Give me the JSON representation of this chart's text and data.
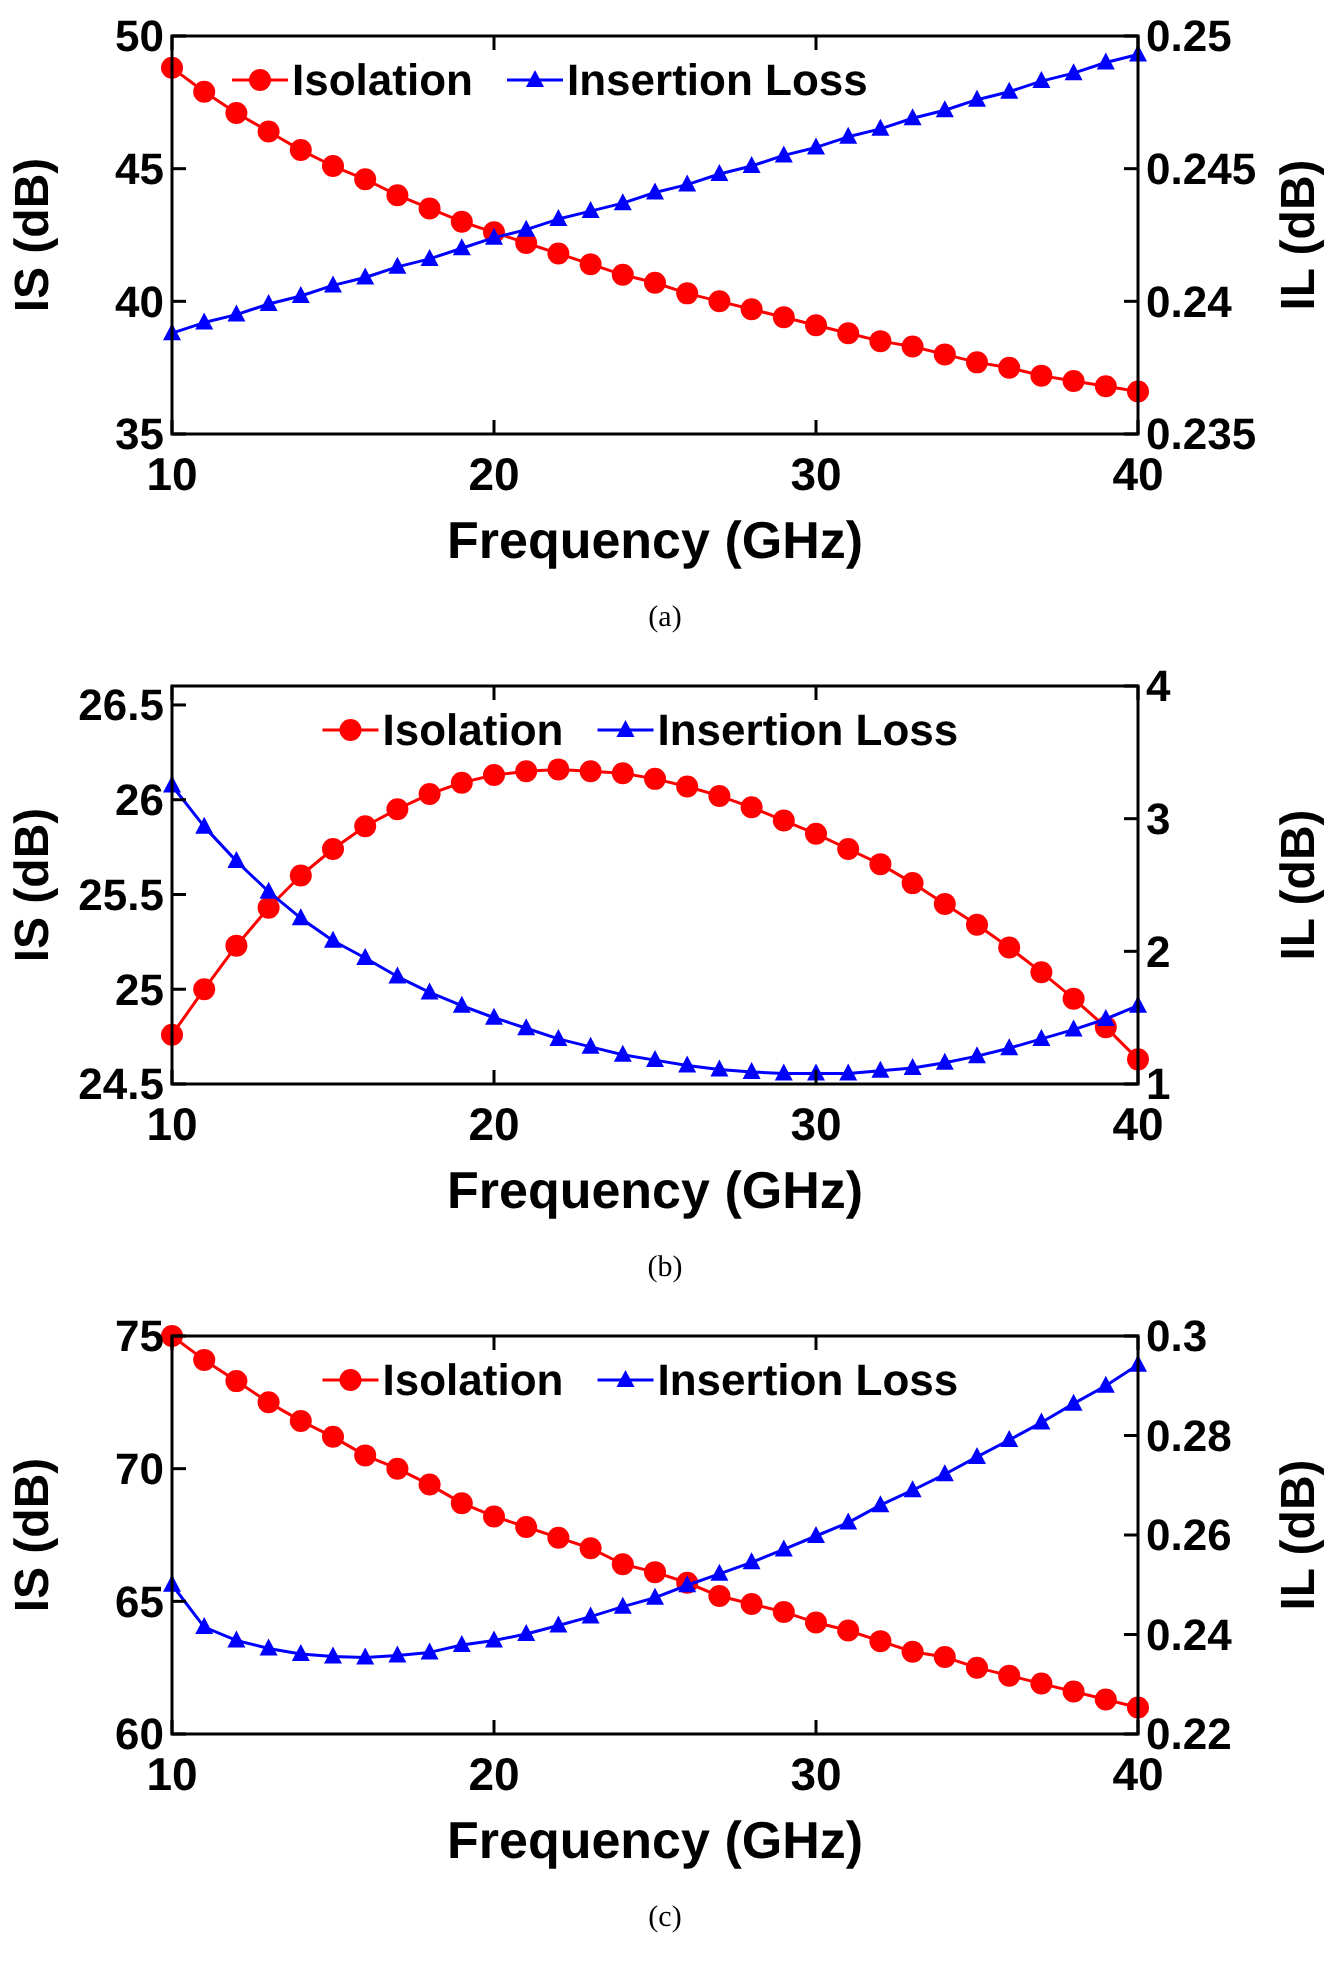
{
  "chart_data": [
    {
      "type": "line",
      "xlabel": "Frequency (GHz)",
      "ylabel": "IS (dB)",
      "y2label": "IL (dB)",
      "legend": "top left",
      "annotations": [
        "(a)"
      ],
      "x": [
        10,
        11,
        12,
        13,
        14,
        15,
        16,
        17,
        18,
        19,
        20,
        21,
        22,
        23,
        24,
        25,
        26,
        27,
        28,
        29,
        30,
        31,
        32,
        33,
        34,
        35,
        36,
        37,
        38,
        39,
        40
      ],
      "xlim": [
        10,
        40
      ],
      "xticks": [
        10,
        20,
        30,
        40
      ],
      "ylim": [
        35,
        50
      ],
      "yticks": [
        35,
        40,
        45,
        50
      ],
      "y2lim": [
        0.235,
        0.25
      ],
      "y2ticks": [
        0.235,
        0.24,
        0.245,
        0.25
      ],
      "series": [
        {
          "name": "Isolation",
          "color": "#ff0000",
          "marker": "circle",
          "values": [
            48.8,
            47.9,
            47.1,
            46.4,
            45.7,
            45.1,
            44.6,
            44.0,
            43.5,
            43.0,
            42.6,
            42.2,
            41.8,
            41.4,
            41.0,
            40.7,
            40.3,
            40.0,
            39.7,
            39.4,
            39.1,
            38.8,
            38.5,
            38.3,
            38.0,
            37.7,
            37.5,
            37.2,
            37.0,
            36.8,
            36.6
          ]
        },
        {
          "name": "Insertion Loss",
          "color": "#0000ff",
          "marker": "triangle",
          "axis": "y2",
          "values": [
            0.2388,
            0.2392,
            0.2395,
            0.2399,
            0.2402,
            0.2406,
            0.2409,
            0.2413,
            0.2416,
            0.242,
            0.2424,
            0.2427,
            0.2431,
            0.2434,
            0.2437,
            0.2441,
            0.2444,
            0.2448,
            0.2451,
            0.2455,
            0.2458,
            0.2462,
            0.2465,
            0.2469,
            0.2472,
            0.2476,
            0.2479,
            0.2483,
            0.2486,
            0.249,
            0.2493
          ]
        }
      ]
    },
    {
      "type": "line",
      "xlabel": "Frequency (GHz)",
      "ylabel": "IS (dB)",
      "y2label": "IL (dB)",
      "legend": "top",
      "annotations": [
        "(b)"
      ],
      "x": [
        10,
        11,
        12,
        13,
        14,
        15,
        16,
        17,
        18,
        19,
        20,
        21,
        22,
        23,
        24,
        25,
        26,
        27,
        28,
        29,
        30,
        31,
        32,
        33,
        34,
        35,
        36,
        37,
        38,
        39,
        40
      ],
      "xlim": [
        10,
        40
      ],
      "xticks": [
        10,
        20,
        30,
        40
      ],
      "ylim": [
        24.5,
        26.6
      ],
      "yticks": [
        24.5,
        25,
        25.5,
        26,
        26.5
      ],
      "y2lim": [
        1,
        4
      ],
      "y2ticks": [
        1,
        2,
        3,
        4
      ],
      "series": [
        {
          "name": "Isolation",
          "color": "#ff0000",
          "marker": "circle",
          "values": [
            24.76,
            25.0,
            25.23,
            25.43,
            25.6,
            25.74,
            25.86,
            25.95,
            26.03,
            26.09,
            26.13,
            26.15,
            26.16,
            26.15,
            26.14,
            26.11,
            26.07,
            26.02,
            25.96,
            25.89,
            25.82,
            25.74,
            25.66,
            25.56,
            25.45,
            25.34,
            25.22,
            25.09,
            24.95,
            24.8,
            24.63
          ]
        },
        {
          "name": "Insertion Loss",
          "color": "#0000ff",
          "marker": "triangle",
          "axis": "y2",
          "values": [
            3.25,
            2.94,
            2.68,
            2.45,
            2.25,
            2.08,
            1.95,
            1.81,
            1.69,
            1.59,
            1.5,
            1.42,
            1.34,
            1.28,
            1.22,
            1.18,
            1.14,
            1.11,
            1.09,
            1.08,
            1.08,
            1.08,
            1.1,
            1.12,
            1.16,
            1.21,
            1.27,
            1.34,
            1.41,
            1.49,
            1.59
          ]
        }
      ]
    },
    {
      "type": "line",
      "xlabel": "Frequency (GHz)",
      "ylabel": "IS (dB)",
      "y2label": "IL (dB)",
      "legend": "top",
      "annotations": [
        "(c)"
      ],
      "x": [
        10,
        11,
        12,
        13,
        14,
        15,
        16,
        17,
        18,
        19,
        20,
        21,
        22,
        23,
        24,
        25,
        26,
        27,
        28,
        29,
        30,
        31,
        32,
        33,
        34,
        35,
        36,
        37,
        38,
        39,
        40
      ],
      "xlim": [
        10,
        40
      ],
      "xticks": [
        10,
        20,
        30,
        40
      ],
      "ylim": [
        60,
        75
      ],
      "yticks": [
        60,
        65,
        70,
        75
      ],
      "y2lim": [
        0.22,
        0.3
      ],
      "y2ticks": [
        0.22,
        0.24,
        0.26,
        0.28,
        0.3
      ],
      "series": [
        {
          "name": "Isolation",
          "color": "#ff0000",
          "marker": "circle",
          "values": [
            75.0,
            74.1,
            73.3,
            72.5,
            71.8,
            71.2,
            70.5,
            70.0,
            69.4,
            68.7,
            68.2,
            67.8,
            67.4,
            67.0,
            66.4,
            66.1,
            65.7,
            65.2,
            64.9,
            64.6,
            64.2,
            63.9,
            63.5,
            63.1,
            62.9,
            62.5,
            62.2,
            61.9,
            61.6,
            61.3,
            61.0
          ]
        },
        {
          "name": "Insertion Loss",
          "color": "#0000ff",
          "marker": "triangle",
          "axis": "y2",
          "values": [
            0.25,
            0.2415,
            0.2388,
            0.2372,
            0.2361,
            0.2356,
            0.2354,
            0.2358,
            0.2364,
            0.2379,
            0.2388,
            0.2401,
            0.2418,
            0.2436,
            0.2456,
            0.2474,
            0.2499,
            0.2522,
            0.2545,
            0.2571,
            0.2598,
            0.2625,
            0.266,
            0.269,
            0.2722,
            0.2757,
            0.2791,
            0.2826,
            0.2864,
            0.29,
            0.2942
          ]
        }
      ]
    }
  ]
}
